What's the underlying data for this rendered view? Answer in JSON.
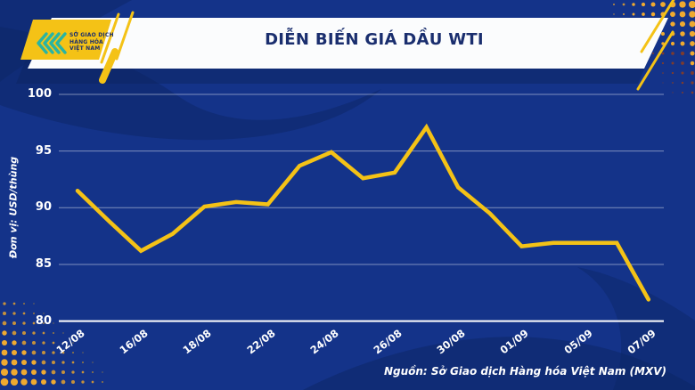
{
  "header": {
    "title": "DIỄN BIẾN GIÁ DẦU WTI",
    "logo": {
      "line1": "SỞ GIAO DỊCH",
      "line2": "HÀNG HÓA",
      "line3": "VIỆT NAM"
    }
  },
  "chart_data": {
    "type": "line",
    "title": "DIỄN BIẾN GIÁ DẦU WTI",
    "ylabel": "Đơn vị: USD/thùng",
    "ylim": [
      80,
      100
    ],
    "yticks": [
      100,
      95,
      90,
      85,
      80
    ],
    "x_labels": [
      "12/08",
      "",
      "16/08",
      "",
      "18/08",
      "",
      "22/08",
      "",
      "24/08",
      "",
      "26/08",
      "",
      "30/08",
      "",
      "01/09",
      "",
      "05/09",
      "",
      "07/09"
    ],
    "series": [
      {
        "name": "WTI",
        "values": [
          91.5,
          88.8,
          86.2,
          87.7,
          90.1,
          90.5,
          90.3,
          93.7,
          94.9,
          92.6,
          93.1,
          97.1,
          91.8,
          89.5,
          86.6,
          86.9,
          86.9,
          86.9,
          81.9
        ]
      }
    ],
    "grid": true,
    "legend_position": "none",
    "line_color": "#F4C216"
  },
  "footer": {
    "source": "Nguồn: Sở Giao dịch Hàng hóa Việt Nam (MXV)"
  },
  "colors": {
    "background": "#143389",
    "wave": "#0C2666",
    "banner": "#FBFCFD",
    "title_text": "#1A2E6E",
    "accent_yellow": "#F4C216",
    "logo_teal": "#28B4A4",
    "dot_orange": "#EFAA30",
    "dot_dim": "#C6913A",
    "dot_small": "#9A7A40",
    "dot_maroon": "#7E3B2D",
    "axis_line": "#FFFFFF"
  }
}
